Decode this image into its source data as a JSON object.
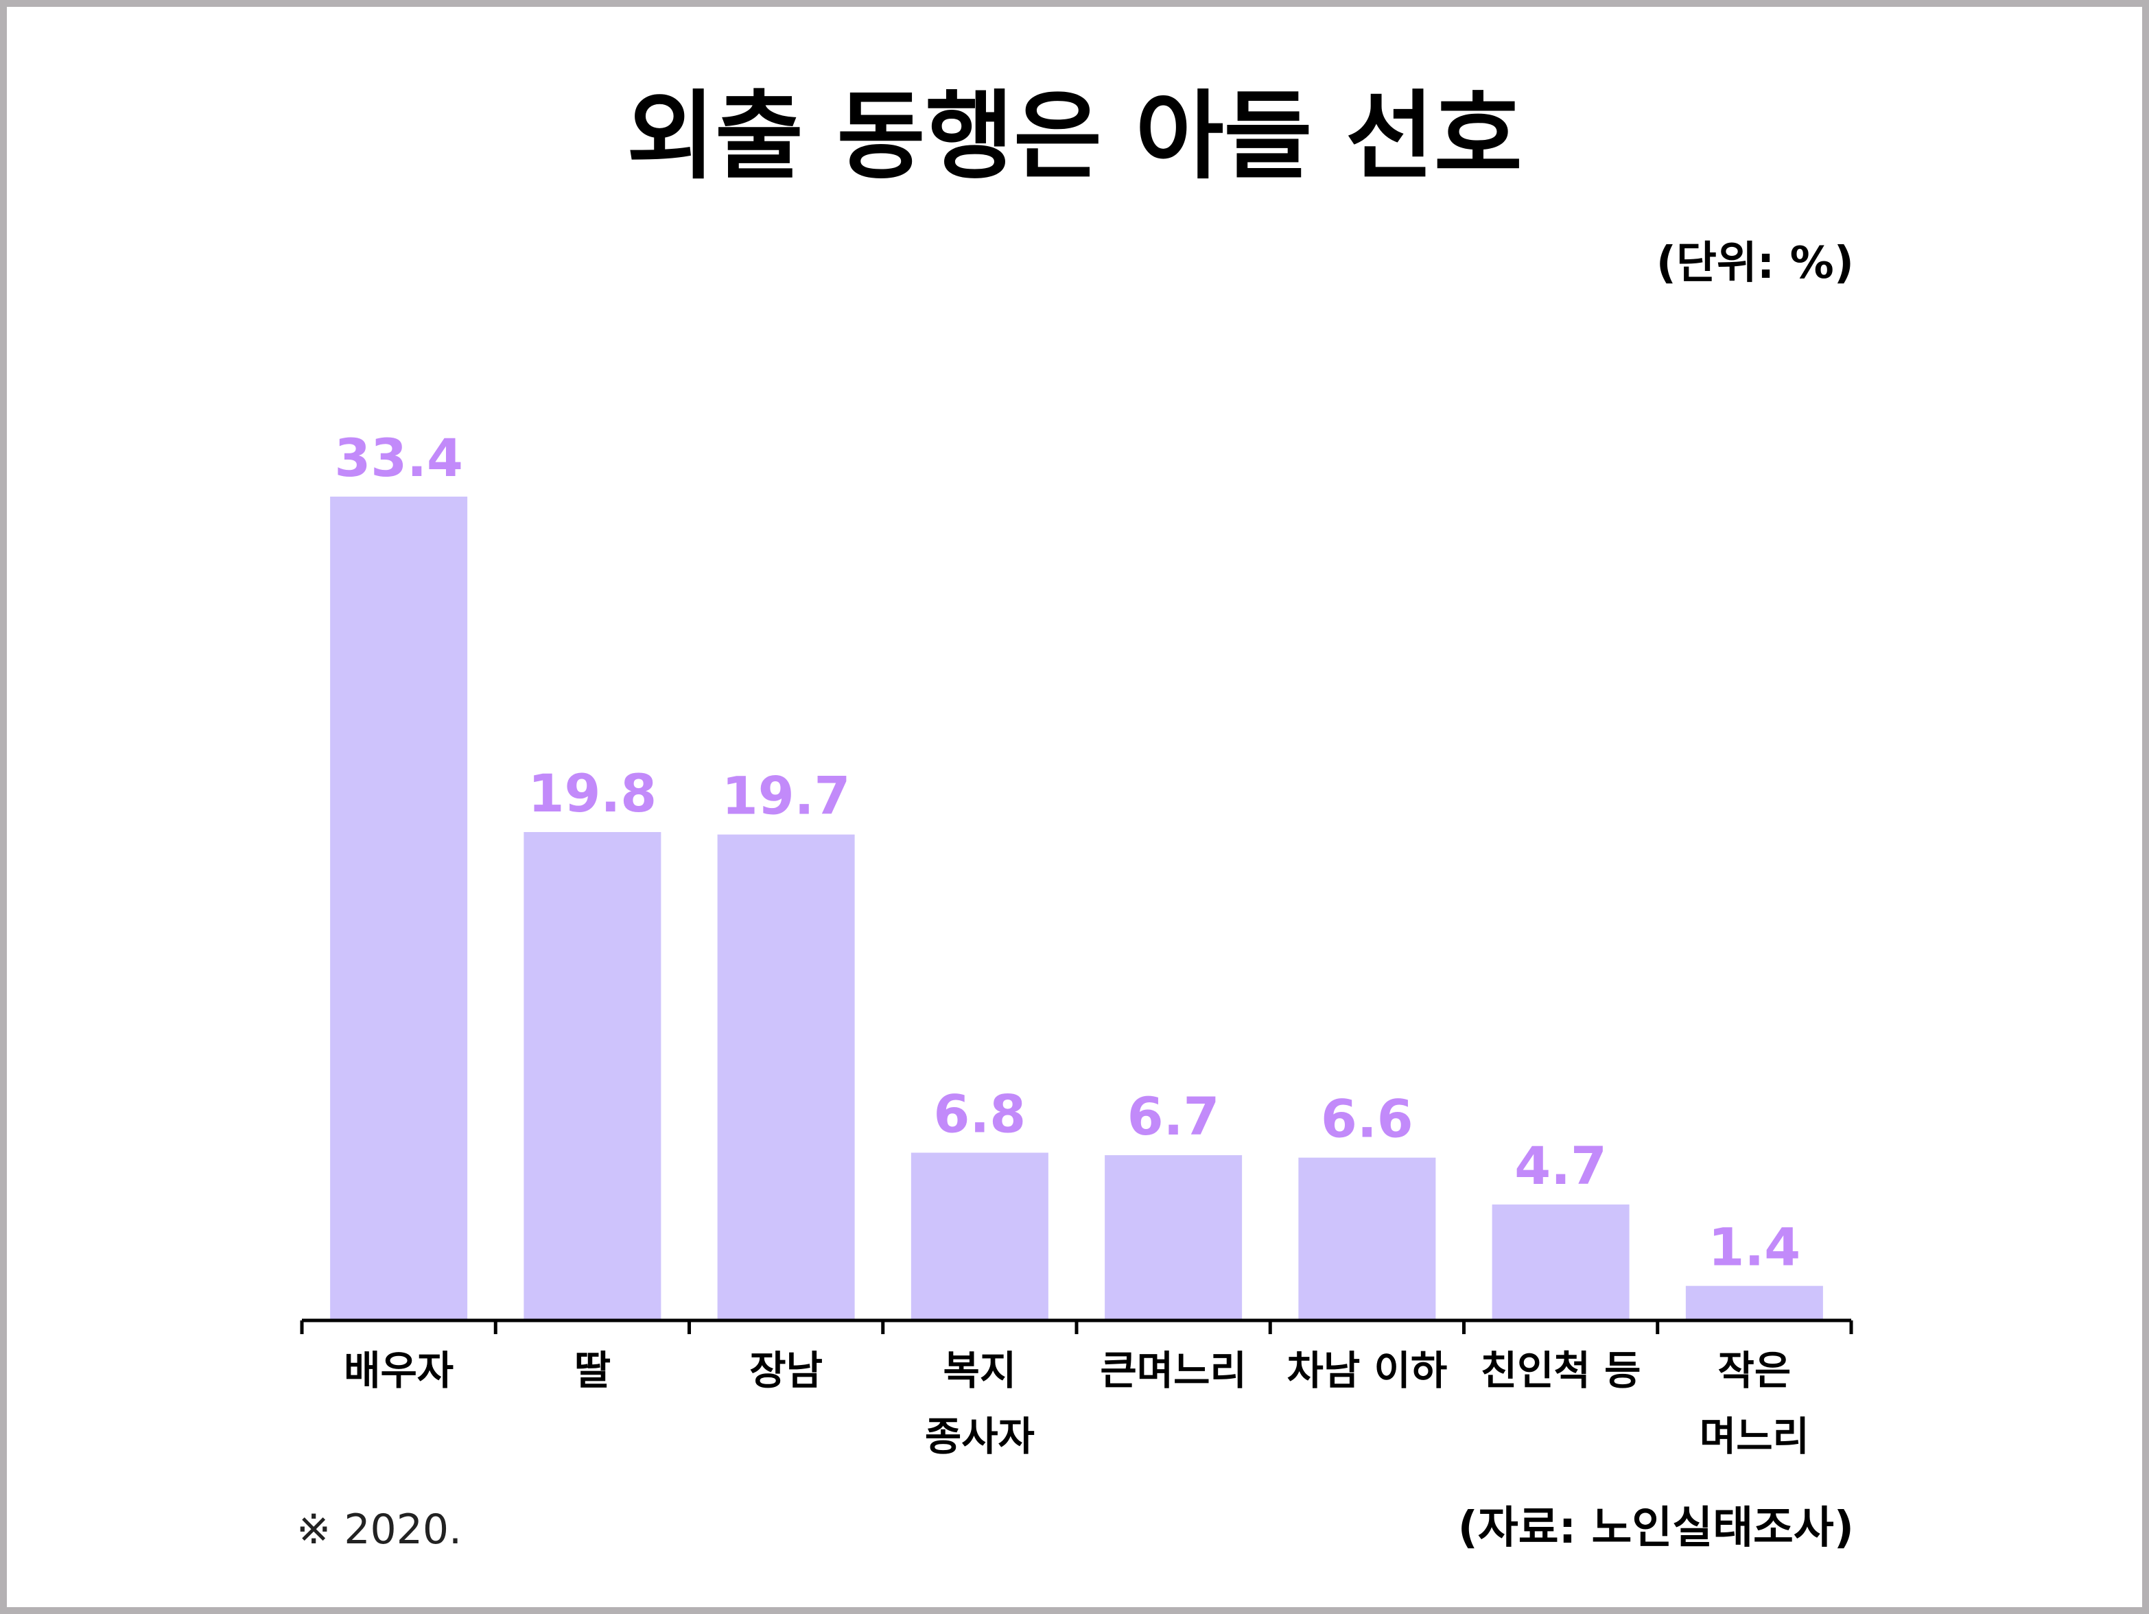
{
  "title": "외출 동행은 아들 선호",
  "unit_label": "(단위: %)",
  "note": "※ 2020.",
  "source": "(자료: 노인실태조사)",
  "colors": {
    "bar": "#cec3fc",
    "value_label": "#c28afa",
    "axis": "#000000",
    "border": "#b4b1b3"
  },
  "chart_data": {
    "type": "bar",
    "title": "외출 동행은 아들 선호",
    "xlabel": "",
    "ylabel": "",
    "unit": "%",
    "categories": [
      [
        "배우자"
      ],
      [
        "딸"
      ],
      [
        "장남"
      ],
      [
        "복지",
        "종사자"
      ],
      [
        "큰며느리"
      ],
      [
        "차남 이하"
      ],
      [
        "친인척 등"
      ],
      [
        "작은",
        "며느리"
      ]
    ],
    "values": [
      33.4,
      19.8,
      19.7,
      6.8,
      6.7,
      6.6,
      4.7,
      1.4
    ],
    "value_labels": [
      "33.4",
      "19.8",
      "19.7",
      "6.8",
      "6.7",
      "6.6",
      "4.7",
      "1.4"
    ],
    "ylim": [
      0,
      33.4
    ],
    "grid": false,
    "legend": "none"
  }
}
